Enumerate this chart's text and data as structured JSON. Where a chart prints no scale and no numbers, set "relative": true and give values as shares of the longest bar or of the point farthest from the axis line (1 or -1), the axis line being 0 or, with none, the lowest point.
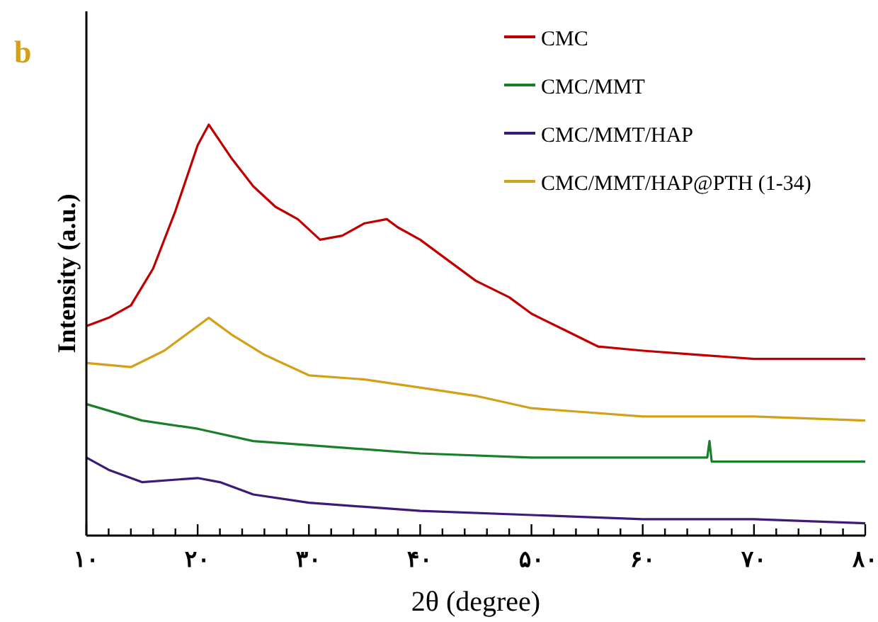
{
  "chart_data": {
    "type": "line",
    "relative": true,
    "xlabel": "2θ (degree)",
    "ylabel": "Intensity (a.u.)",
    "annotations": [
      "b"
    ],
    "legend": "top right",
    "marker": "none",
    "line_style": "solid",
    "xlim": [
      10,
      80
    ],
    "xticks": [
      {
        "value": 10,
        "label": "۱۰"
      },
      {
        "value": 12,
        "label": null
      },
      {
        "value": 14,
        "label": null
      },
      {
        "value": 16,
        "label": null
      },
      {
        "value": 18,
        "label": null
      },
      {
        "value": 20,
        "label": "۲۰"
      },
      {
        "value": 22,
        "label": null
      },
      {
        "value": 24,
        "label": null
      },
      {
        "value": 26,
        "label": null
      },
      {
        "value": 28,
        "label": null
      },
      {
        "value": 30,
        "label": "۳۰"
      },
      {
        "value": 32,
        "label": null
      },
      {
        "value": 34,
        "label": null
      },
      {
        "value": 36,
        "label": null
      },
      {
        "value": 38,
        "label": null
      },
      {
        "value": 40,
        "label": "۴۰"
      },
      {
        "value": 42,
        "label": null
      },
      {
        "value": 44,
        "label": null
      },
      {
        "value": 46,
        "label": null
      },
      {
        "value": 48,
        "label": null
      },
      {
        "value": 50,
        "label": "۵۰"
      },
      {
        "value": 52,
        "label": null
      },
      {
        "value": 54,
        "label": null
      },
      {
        "value": 56,
        "label": null
      },
      {
        "value": 58,
        "label": null
      },
      {
        "value": 60,
        "label": "۶۰"
      },
      {
        "value": 62,
        "label": null
      },
      {
        "value": 64,
        "label": null
      },
      {
        "value": 66,
        "label": null
      },
      {
        "value": 68,
        "label": null
      },
      {
        "value": 70,
        "label": "۷۰"
      },
      {
        "value": 72,
        "label": null
      },
      {
        "value": 74,
        "label": null
      },
      {
        "value": 76,
        "label": null
      },
      {
        "value": 78,
        "label": null
      },
      {
        "value": 80,
        "label": "۸۰"
      }
    ],
    "series": [
      {
        "name": "CMC",
        "color": "#c00000",
        "x": [
          10,
          12,
          14,
          16,
          18,
          19,
          20,
          21,
          22,
          23,
          25,
          27,
          29,
          31,
          33,
          35,
          37,
          38,
          40,
          42,
          45,
          48,
          50,
          53,
          56,
          60,
          65,
          70,
          75,
          80
        ],
        "values": [
          0.51,
          0.53,
          0.56,
          0.65,
          0.79,
          0.87,
          0.95,
          1.0,
          0.96,
          0.92,
          0.85,
          0.8,
          0.77,
          0.72,
          0.73,
          0.76,
          0.77,
          0.75,
          0.72,
          0.68,
          0.62,
          0.58,
          0.54,
          0.5,
          0.46,
          0.45,
          0.44,
          0.43,
          0.43,
          0.43
        ]
      },
      {
        "name": "CMC/MMT",
        "color": "#1a7f2a",
        "x": [
          10,
          15,
          20,
          25,
          30,
          40,
          50,
          60,
          65.8,
          66,
          66.2,
          70,
          80
        ],
        "values": [
          0.32,
          0.28,
          0.26,
          0.23,
          0.22,
          0.2,
          0.19,
          0.19,
          0.19,
          0.23,
          0.18,
          0.18,
          0.18
        ]
      },
      {
        "name": "CMC/MMT/HAP",
        "color": "#3d1a78",
        "x": [
          10,
          12,
          15,
          20,
          22,
          25,
          30,
          40,
          50,
          60,
          70,
          80
        ],
        "values": [
          0.19,
          0.16,
          0.13,
          0.14,
          0.13,
          0.1,
          0.08,
          0.06,
          0.05,
          0.04,
          0.04,
          0.03
        ]
      },
      {
        "name": "CMC/MMT/HAP@PTH (1-34)",
        "color": "#d4a017",
        "x": [
          10,
          14,
          17,
          20,
          21,
          23,
          26,
          30,
          35,
          40,
          45,
          50,
          55,
          60,
          70,
          80
        ],
        "values": [
          0.42,
          0.41,
          0.45,
          0.51,
          0.53,
          0.49,
          0.44,
          0.39,
          0.38,
          0.36,
          0.34,
          0.31,
          0.3,
          0.29,
          0.29,
          0.28
        ]
      }
    ]
  }
}
